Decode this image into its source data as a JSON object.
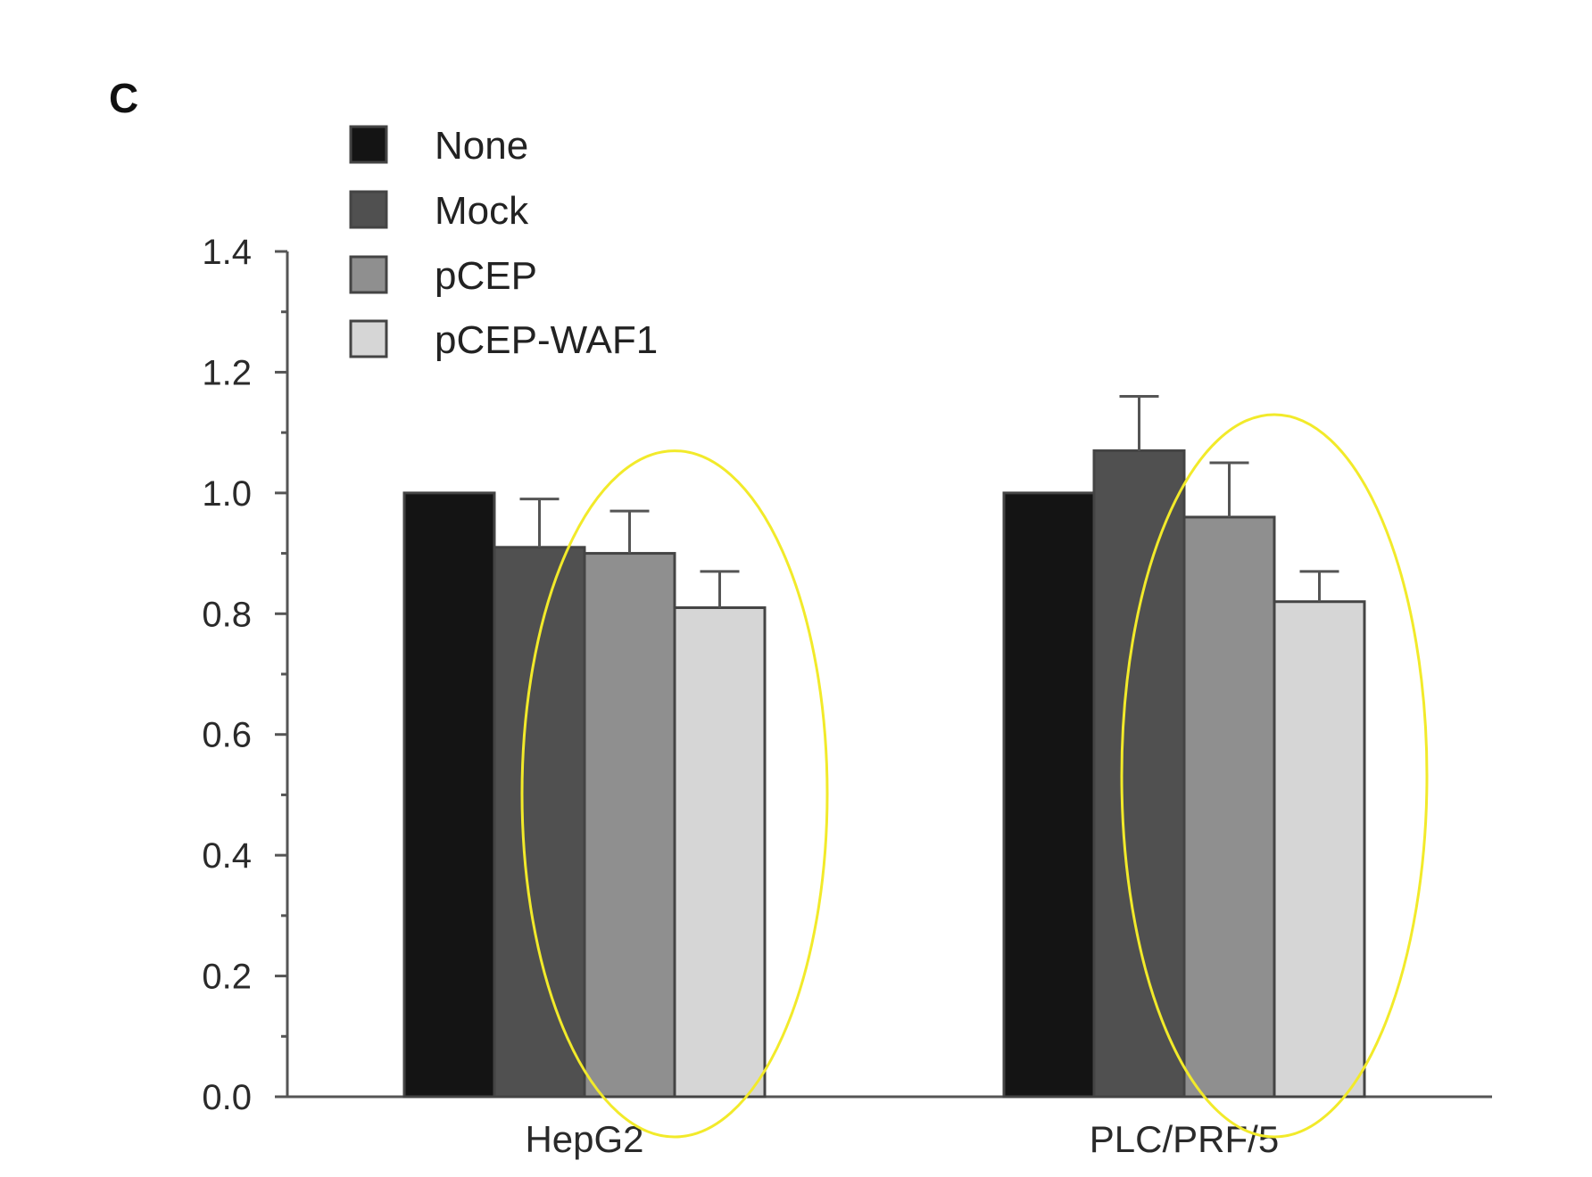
{
  "panel_label": "C",
  "chart_data": {
    "type": "bar",
    "categories": [
      "HepG2",
      "PLC/PRF/5"
    ],
    "series": [
      {
        "name": "None",
        "values": [
          1.0,
          1.0
        ],
        "errors": [
          0,
          0
        ],
        "color": "#141414"
      },
      {
        "name": "Mock",
        "values": [
          0.91,
          1.07
        ],
        "errors": [
          0.08,
          0.09
        ],
        "color": "#505050"
      },
      {
        "name": "pCEP",
        "values": [
          0.9,
          0.96
        ],
        "errors": [
          0.07,
          0.09
        ],
        "color": "#8f8f8f"
      },
      {
        "name": "pCEP-WAF1",
        "values": [
          0.81,
          0.82
        ],
        "errors": [
          0.06,
          0.05
        ],
        "color": "#d6d6d6"
      }
    ],
    "ylim": [
      0,
      1.4
    ],
    "yticks": [
      "0.0",
      "0.2",
      "0.4",
      "0.6",
      "0.8",
      "1.0",
      "1.2",
      "1.4"
    ],
    "xlabel": "",
    "ylabel": "",
    "legend_position": "top-left",
    "highlights": [
      {
        "category": "HepG2",
        "series": [
          "pCEP",
          "pCEP-WAF1"
        ],
        "color": "#f2ea2a"
      },
      {
        "category": "PLC/PRF/5",
        "series": [
          "pCEP",
          "pCEP-WAF1"
        ],
        "color": "#f2ea2a"
      }
    ]
  }
}
